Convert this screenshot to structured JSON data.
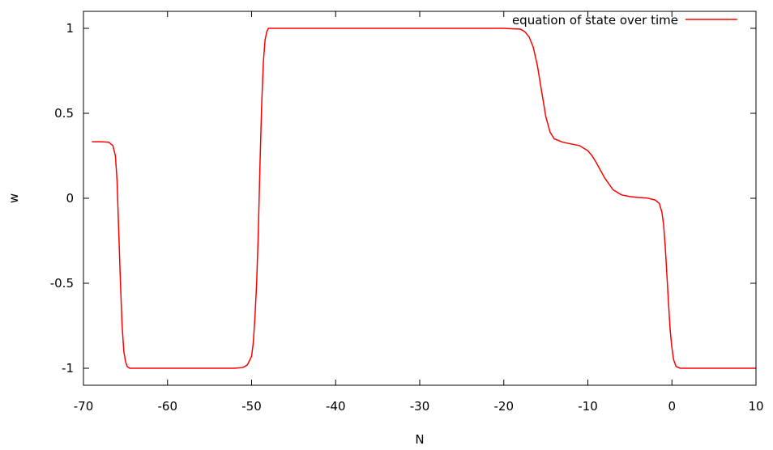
{
  "chart_data": {
    "type": "line",
    "title": "",
    "xlabel": "N",
    "ylabel": "w",
    "xlim": [
      -70,
      10
    ],
    "ylim": [
      -1.1,
      1.1
    ],
    "x_ticks": [
      -70,
      -60,
      -50,
      -40,
      -30,
      -20,
      -10,
      0,
      10
    ],
    "x_tick_labels": [
      "-70",
      "-60",
      "-50",
      "-40",
      "-30",
      "-20",
      "-10",
      "0",
      "10"
    ],
    "y_ticks": [
      -1,
      -0.5,
      0,
      0.5,
      1
    ],
    "y_tick_labels": [
      "-1",
      "-0.5",
      "0",
      "0.5",
      "1"
    ],
    "grid": false,
    "legend": {
      "position": "top-right"
    },
    "series": [
      {
        "name": "equation of state over time",
        "color": "#ff0000",
        "x": [
          -69,
          -68,
          -67,
          -66.5,
          -66.2,
          -66,
          -65.8,
          -65.6,
          -65.4,
          -65.2,
          -65,
          -64.8,
          -64.5,
          -64,
          -63,
          -60,
          -55,
          -52,
          -51,
          -50.5,
          -50,
          -49.8,
          -49.6,
          -49.4,
          -49.2,
          -49,
          -48.8,
          -48.6,
          -48.4,
          -48.2,
          -48,
          -47,
          -45,
          -40,
          -30,
          -20,
          -18,
          -17.5,
          -17,
          -16.5,
          -16,
          -15.5,
          -15,
          -14.5,
          -14,
          -13,
          -12,
          -11,
          -10,
          -9.5,
          -9,
          -8,
          -7,
          -6,
          -5,
          -4,
          -3,
          -2,
          -1.5,
          -1.2,
          -1,
          -0.8,
          -0.6,
          -0.4,
          -0.2,
          0,
          0.2,
          0.5,
          1,
          2,
          5,
          10
        ],
        "y": [
          0.333,
          0.333,
          0.33,
          0.31,
          0.25,
          0.1,
          -0.2,
          -0.5,
          -0.75,
          -0.9,
          -0.96,
          -0.99,
          -1,
          -1,
          -1,
          -1,
          -1,
          -1,
          -0.995,
          -0.98,
          -0.93,
          -0.85,
          -0.7,
          -0.5,
          -0.2,
          0.2,
          0.55,
          0.8,
          0.93,
          0.98,
          1,
          1,
          1,
          1,
          1,
          1,
          0.995,
          0.98,
          0.95,
          0.89,
          0.78,
          0.63,
          0.48,
          0.39,
          0.35,
          0.33,
          0.32,
          0.31,
          0.28,
          0.25,
          0.21,
          0.12,
          0.05,
          0.02,
          0.01,
          0.005,
          0.002,
          -0.01,
          -0.03,
          -0.08,
          -0.15,
          -0.28,
          -0.45,
          -0.62,
          -0.78,
          -0.88,
          -0.95,
          -0.99,
          -1,
          -1,
          -1,
          -1
        ]
      }
    ]
  }
}
